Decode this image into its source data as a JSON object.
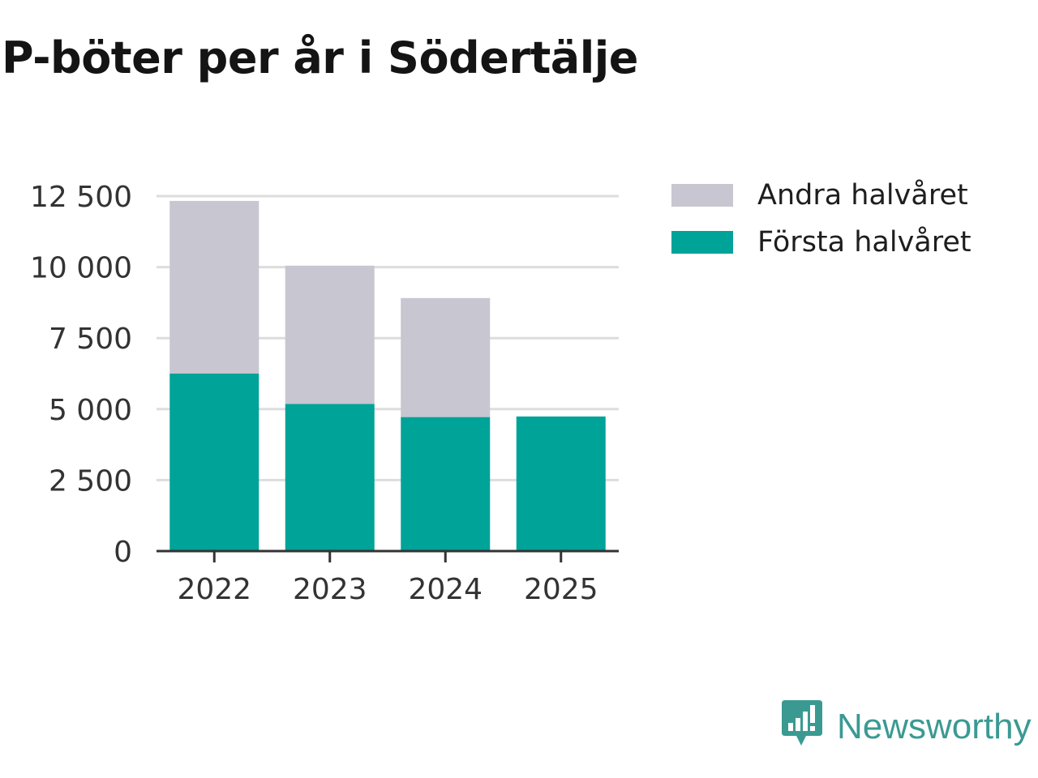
{
  "colors": {
    "first_half": "#00a398",
    "second_half": "#c7c6d1",
    "grid": "#dddddd",
    "axis": "#333333",
    "brand": "#3a9a92"
  },
  "chart_data": {
    "type": "bar",
    "stacked": true,
    "title": "P-böter per år i Södertälje",
    "xlabel": "",
    "ylabel": "",
    "ylim": [
      0,
      12500
    ],
    "yticks": [
      0,
      2500,
      5000,
      7500,
      10000,
      12500
    ],
    "ytick_labels": [
      "0",
      "2 500",
      "5 000",
      "7 500",
      "10 000",
      "12 500"
    ],
    "categories": [
      "2022",
      "2023",
      "2024",
      "2025"
    ],
    "series": [
      {
        "name": "Första halvåret",
        "values": [
          6250,
          5180,
          4720,
          4740
        ]
      },
      {
        "name": "Andra halvåret",
        "values": [
          6080,
          4870,
          4190,
          0
        ]
      }
    ],
    "legend_position": "right",
    "grid": true
  },
  "legend": {
    "items": [
      {
        "label": "Andra halvåret",
        "color_key": "second_half"
      },
      {
        "label": "Första halvåret",
        "color_key": "first_half"
      }
    ]
  },
  "brand": {
    "name": "Newsworthy",
    "icon": "newsworthy-logo-icon"
  }
}
